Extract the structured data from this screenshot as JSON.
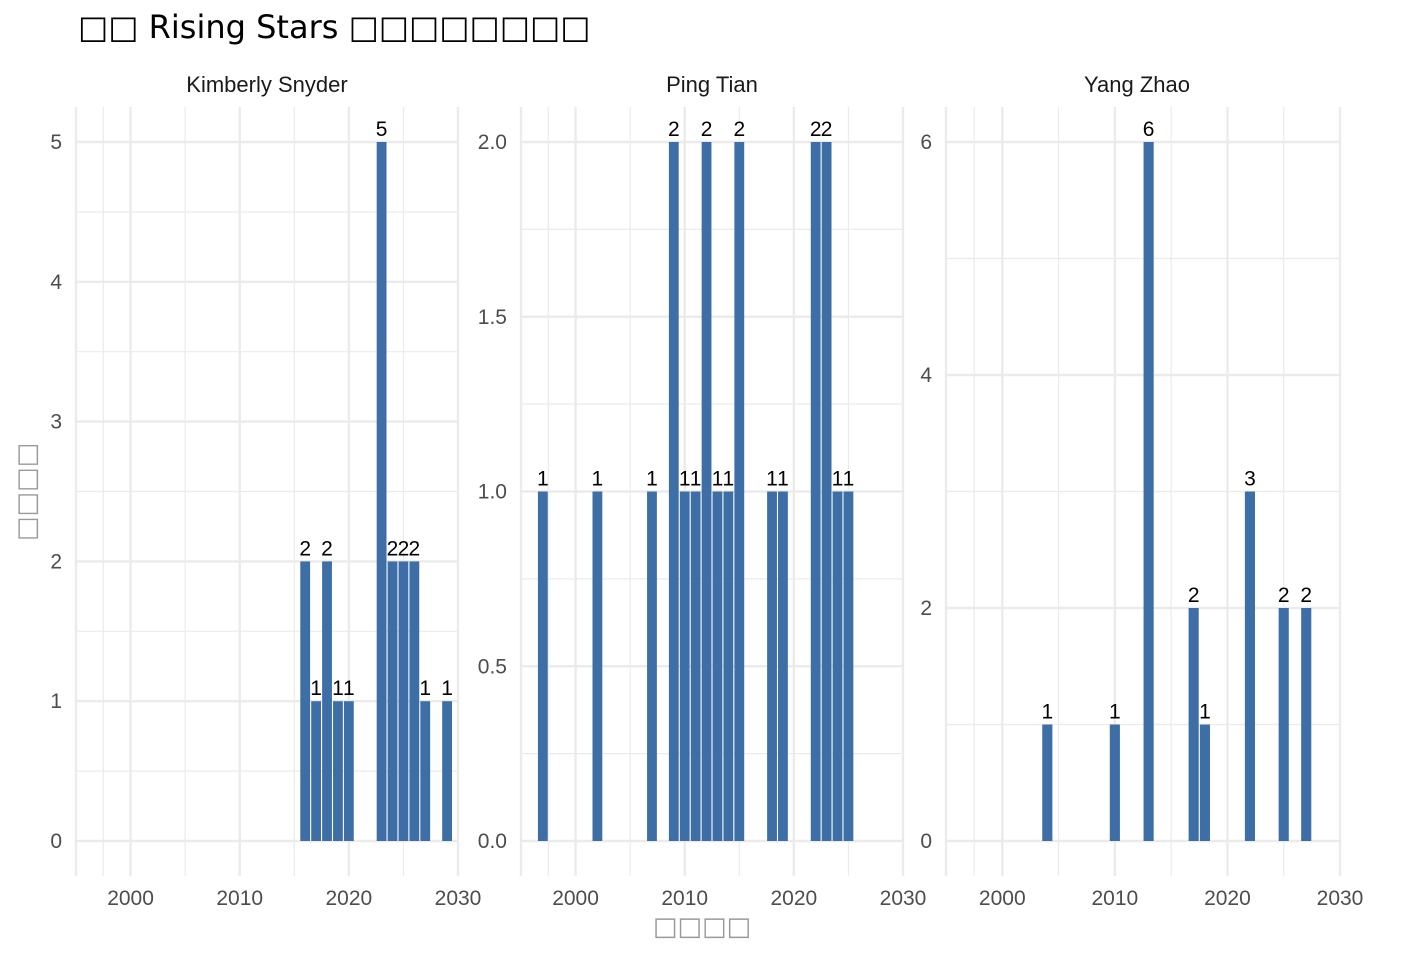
{
  "title": "□□ Rising Stars □□□□□□□□",
  "xlabel": "□□□□",
  "ylabel": "□□□□",
  "bar_color": "#3d6fa6",
  "grid_color": "#ebebeb",
  "chart_data": {
    "type": "bar",
    "facets": [
      {
        "name": "Kimberly Snyder",
        "xlim": [
          1995,
          2030
        ],
        "xticks": [
          2000,
          2010,
          2020,
          2030
        ],
        "ylim": [
          0,
          5
        ],
        "yticks": [
          0,
          1,
          2,
          3,
          4,
          5
        ],
        "yticklabels": [
          "0",
          "1",
          "2",
          "3",
          "4",
          "5"
        ],
        "x": [
          2016,
          2017,
          2018,
          2019,
          2020,
          2023,
          2024,
          2025,
          2026,
          2027,
          2029
        ],
        "values": [
          2,
          1,
          2,
          1,
          1,
          5,
          2,
          2,
          2,
          1,
          1
        ]
      },
      {
        "name": "Ping Tian",
        "xlim": [
          1995,
          2030
        ],
        "xticks": [
          2000,
          2010,
          2020,
          2030
        ],
        "ylim": [
          0,
          2
        ],
        "yticks": [
          0,
          0.5,
          1,
          1.5,
          2
        ],
        "yticklabels": [
          "0.0",
          "0.5",
          "1.0",
          "1.5",
          "2.0"
        ],
        "x": [
          1997,
          2002,
          2007,
          2009,
          2010,
          2011,
          2012,
          2013,
          2014,
          2015,
          2018,
          2019,
          2022,
          2023,
          2024,
          2025
        ],
        "values": [
          1,
          1,
          1,
          2,
          1,
          1,
          2,
          1,
          1,
          2,
          1,
          1,
          2,
          2,
          1,
          1
        ]
      },
      {
        "name": "Yang Zhao",
        "xlim": [
          1995,
          2030
        ],
        "xticks": [
          2000,
          2010,
          2020,
          2030
        ],
        "ylim": [
          0,
          6
        ],
        "yticks": [
          0,
          2,
          4,
          6
        ],
        "yticklabels": [
          "0",
          "2",
          "4",
          "6"
        ],
        "x": [
          2004,
          2010,
          2013,
          2017,
          2018,
          2022,
          2025,
          2027
        ],
        "values": [
          1,
          1,
          6,
          2,
          1,
          3,
          2,
          2
        ]
      }
    ]
  }
}
